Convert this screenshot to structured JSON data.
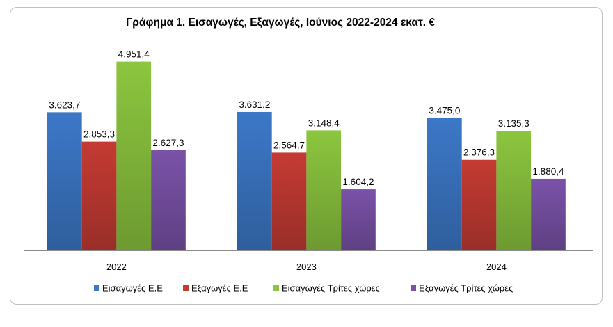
{
  "chart_data": {
    "type": "bar",
    "title": "Γράφημα 1. Εισαγωγές, Εξαγωγές, Ιούνιος 2022-2024 εκατ. €",
    "categories": [
      "2022",
      "2023",
      "2024"
    ],
    "series": [
      {
        "name": "Εισαγωγές Ε.Ε",
        "values": [
          3623.7,
          3631.2,
          3475.0
        ],
        "labels": [
          "3.623,7",
          "3.631,2",
          "3.475,0"
        ],
        "color": "#3c78c8"
      },
      {
        "name": "Εξαγωγές  Ε.Ε",
        "values": [
          2853.3,
          2564.7,
          2376.3
        ],
        "labels": [
          "2.853,3",
          "2.564,7",
          "2.376,3"
        ],
        "color": "#c43b33"
      },
      {
        "name": "Εισαγωγές Τρίτες χώρες",
        "values": [
          4951.4,
          3148.4,
          3135.3
        ],
        "labels": [
          "4.951,4",
          "3.148,4",
          "3.135,3"
        ],
        "color": "#8cc63f"
      },
      {
        "name": "Εξαγωγές Τρίτες χώρες",
        "values": [
          2627.3,
          1604.2,
          1880.4
        ],
        "labels": [
          "2.627,3",
          "1.604,2",
          "1.880,4"
        ],
        "color": "#7a52a8"
      }
    ],
    "ylim": [
      0,
      5400
    ],
    "grid": false,
    "legend": "bottom",
    "xlabel": "",
    "ylabel": ""
  }
}
